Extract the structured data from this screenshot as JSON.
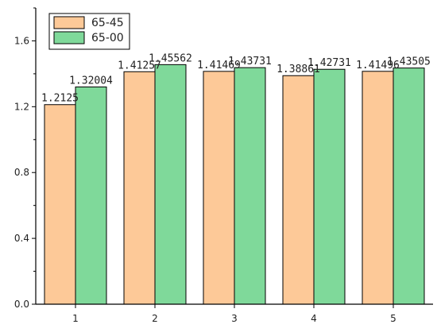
{
  "chart_data": {
    "type": "bar",
    "title": "",
    "xlabel": "",
    "ylabel": "",
    "categories": [
      "1",
      "2",
      "3",
      "4",
      "5"
    ],
    "series": [
      {
        "name": "65-45",
        "values": [
          1.2125,
          1.41257,
          1.41469,
          1.38861,
          1.41496
        ],
        "color": "#FDC998",
        "labels": [
          "1.2125",
          "1.41257",
          "1.41469",
          "1.38861",
          "1.41496"
        ]
      },
      {
        "name": "65-00",
        "values": [
          1.32004,
          1.45562,
          1.43731,
          1.42731,
          1.43505
        ],
        "color": "#7FD99A",
        "labels": [
          "1.32004",
          "1.45562",
          "1.43731",
          "1.42731",
          "1.43505"
        ]
      }
    ],
    "ylim": [
      0,
      1.8
    ],
    "yticks": [
      "0.0",
      "0.4",
      "0.8",
      "1.2",
      "1.6"
    ],
    "ytick_values": [
      0,
      0.4,
      0.8,
      1.2,
      1.6
    ],
    "grid": false,
    "legend_position": "top-left"
  }
}
